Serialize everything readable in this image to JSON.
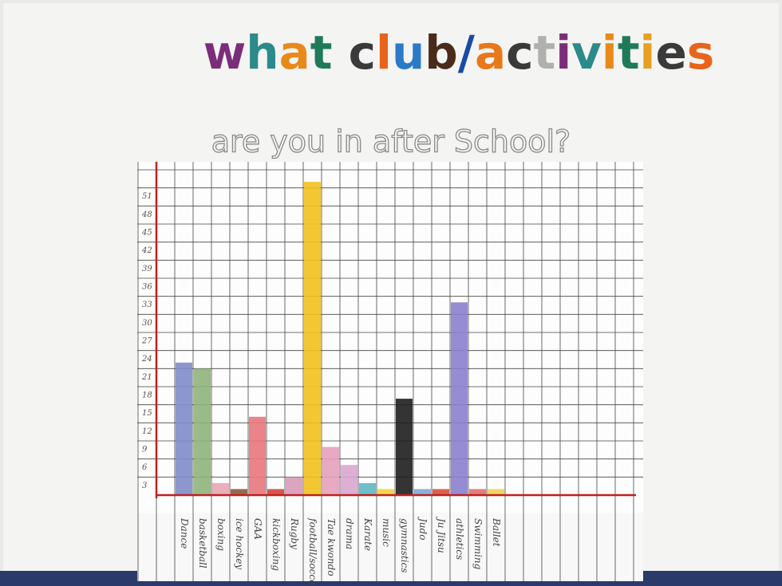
{
  "chart_data": {
    "type": "bar",
    "title": "what club/activities",
    "subtitle": "are you in after School?",
    "categories": [
      "Dance",
      "basketball",
      "boxing",
      "ice hockey",
      "GAA",
      "kickboxing",
      "Rugby",
      "football/soccer",
      "Tae kwondo",
      "drama",
      "Karate",
      "music",
      "gymnastics",
      "Judo",
      "Ju Jitsu",
      "athletics",
      "Swimming",
      "Ballet"
    ],
    "values": [
      22,
      21,
      2,
      1,
      13,
      1,
      3,
      52,
      8,
      5,
      2,
      1,
      16,
      1,
      1,
      32,
      1,
      1
    ],
    "colors": [
      "#7f8cc9",
      "#8fb37a",
      "#e7a6b4",
      "#8a5a3a",
      "#e8777d",
      "#d8403a",
      "#d99ab8",
      "#f2c11d",
      "#e6a1bd",
      "#d9a6cf",
      "#5fb8c4",
      "#f3d13a",
      "#1e1e1e",
      "#7aaad8",
      "#d9503a",
      "#8b80cf",
      "#e07070",
      "#f0d050"
    ],
    "ylim": [
      0,
      54
    ],
    "yticks": [
      3,
      6,
      9,
      12,
      15,
      18,
      21,
      24,
      27,
      30,
      33,
      36,
      39,
      42,
      45,
      48,
      51
    ],
    "grid": true
  }
}
